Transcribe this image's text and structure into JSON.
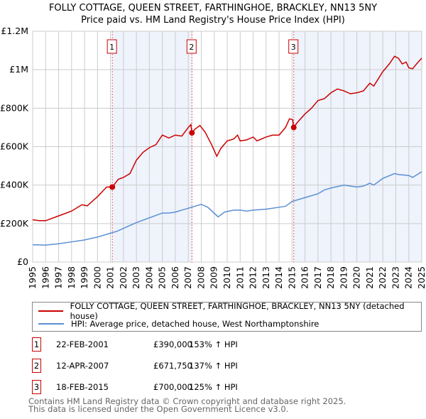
{
  "title_line1": "FOLLY COTTAGE, QUEEN STREET, FARTHINGHOE, BRACKLEY, NN13 5NY",
  "title_line2": "Price paid vs. HM Land Registry's House Price Index (HPI)",
  "chart_data": {
    "type": "line",
    "xlim": [
      1995,
      2025
    ],
    "ylim": [
      0,
      1200000
    ],
    "yticks": [
      0,
      200000,
      400000,
      600000,
      800000,
      1000000,
      1200000
    ],
    "ytick_labels": [
      "£0",
      "£200K",
      "£400K",
      "£600K",
      "£800K",
      "£1M",
      "£1.2M"
    ],
    "xticks": [
      1995,
      1996,
      1997,
      1998,
      1999,
      2000,
      2001,
      2002,
      2003,
      2004,
      2005,
      2006,
      2007,
      2008,
      2009,
      2010,
      2011,
      2012,
      2013,
      2014,
      2015,
      2016,
      2017,
      2018,
      2019,
      2020,
      2021,
      2022,
      2023,
      2024,
      2025
    ],
    "colors": {
      "property": "#cc0000",
      "hpi": "#5b8fd4",
      "shade": "#eef3fc"
    },
    "shaded_ranges": [
      [
        2001.14,
        2007.28
      ],
      [
        2015.13,
        2025
      ]
    ],
    "series": [
      {
        "name": "FOLLY COTTAGE, QUEEN STREET, FARTHINGHOE, BRACKLEY, NN13 5NY (detached house)",
        "color": "#cc0000",
        "x": [
          1995,
          1995.5,
          1996,
          1997,
          1998,
          1998.8,
          1999.2,
          2000,
          2000.7,
          2001.14,
          2001.6,
          2002,
          2002.5,
          2003,
          2003.5,
          2004,
          2004.5,
          2005,
          2005.5,
          2006,
          2006.5,
          2007,
          2007.2,
          2007.28,
          2007.5,
          2007.9,
          2008.3,
          2008.8,
          2009.2,
          2009.5,
          2010,
          2010.5,
          2010.8,
          2011,
          2011.5,
          2012,
          2012.3,
          2013,
          2013.5,
          2014,
          2014.5,
          2014.8,
          2015.05,
          2015.13,
          2015.4,
          2016,
          2016.5,
          2017,
          2017.5,
          2018,
          2018.5,
          2019,
          2019.5,
          2020,
          2020.5,
          2021,
          2021.3,
          2022,
          2022.5,
          2022.9,
          2023.2,
          2023.5,
          2023.8,
          2024,
          2024.3,
          2024.6,
          2025
        ],
        "y": [
          220000,
          215000,
          215000,
          240000,
          265000,
          298000,
          292000,
          340000,
          390000,
          390000,
          430000,
          440000,
          460000,
          530000,
          570000,
          595000,
          610000,
          660000,
          645000,
          660000,
          655000,
          700000,
          715000,
          671750,
          690000,
          710000,
          675000,
          610000,
          550000,
          590000,
          630000,
          640000,
          660000,
          630000,
          635000,
          650000,
          630000,
          650000,
          660000,
          660000,
          700000,
          745000,
          740000,
          700000,
          725000,
          770000,
          800000,
          840000,
          850000,
          880000,
          900000,
          890000,
          875000,
          880000,
          890000,
          930000,
          915000,
          990000,
          1030000,
          1070000,
          1060000,
          1030000,
          1040000,
          1010000,
          1005000,
          1030000,
          1060000
        ]
      },
      {
        "name": "HPI: Average price, detached house, West Northamptonshire",
        "color": "#5b8fd4",
        "x": [
          1995,
          1996,
          1997,
          1998,
          1999,
          2000,
          2001,
          2001.5,
          2002,
          2003,
          2004,
          2005,
          2005.5,
          2006,
          2007,
          2008,
          2008.5,
          2009.3,
          2009.8,
          2010.5,
          2011,
          2011.5,
          2012,
          2013,
          2014,
          2014.5,
          2015,
          2016,
          2017,
          2017.5,
          2018,
          2019,
          2019.5,
          2020,
          2020.5,
          2021,
          2021.3,
          2022,
          2022.9,
          2023.2,
          2024,
          2024.3,
          2025
        ],
        "y": [
          90000,
          88000,
          95000,
          105000,
          115000,
          130000,
          150000,
          160000,
          175000,
          205000,
          230000,
          255000,
          255000,
          260000,
          280000,
          300000,
          285000,
          235000,
          260000,
          270000,
          270000,
          265000,
          270000,
          275000,
          285000,
          290000,
          315000,
          335000,
          355000,
          375000,
          385000,
          400000,
          395000,
          390000,
          395000,
          410000,
          400000,
          435000,
          460000,
          455000,
          450000,
          440000,
          470000
        ]
      }
    ],
    "sales": [
      {
        "label": "1",
        "date": "22-FEB-2001",
        "x": 2001.14,
        "price": "£390,000",
        "value": 390000,
        "hpi": "153% ↑ HPI"
      },
      {
        "label": "2",
        "date": "12-APR-2007",
        "x": 2007.28,
        "price": "£671,750",
        "value": 671750,
        "hpi": "137% ↑ HPI"
      },
      {
        "label": "3",
        "date": "18-FEB-2015",
        "x": 2015.13,
        "price": "£700,000",
        "value": 700000,
        "hpi": "125% ↑ HPI"
      }
    ]
  },
  "legend": {
    "property": "FOLLY COTTAGE, QUEEN STREET, FARTHINGHOE, BRACKLEY, NN13 5NY (detached house)",
    "hpi": "HPI: Average price, detached house, West Northamptonshire"
  },
  "footer": {
    "line1": "Contains HM Land Registry data © Crown copyright and database right 2025.",
    "line2": "This data is licensed under the Open Government Licence v3.0."
  }
}
